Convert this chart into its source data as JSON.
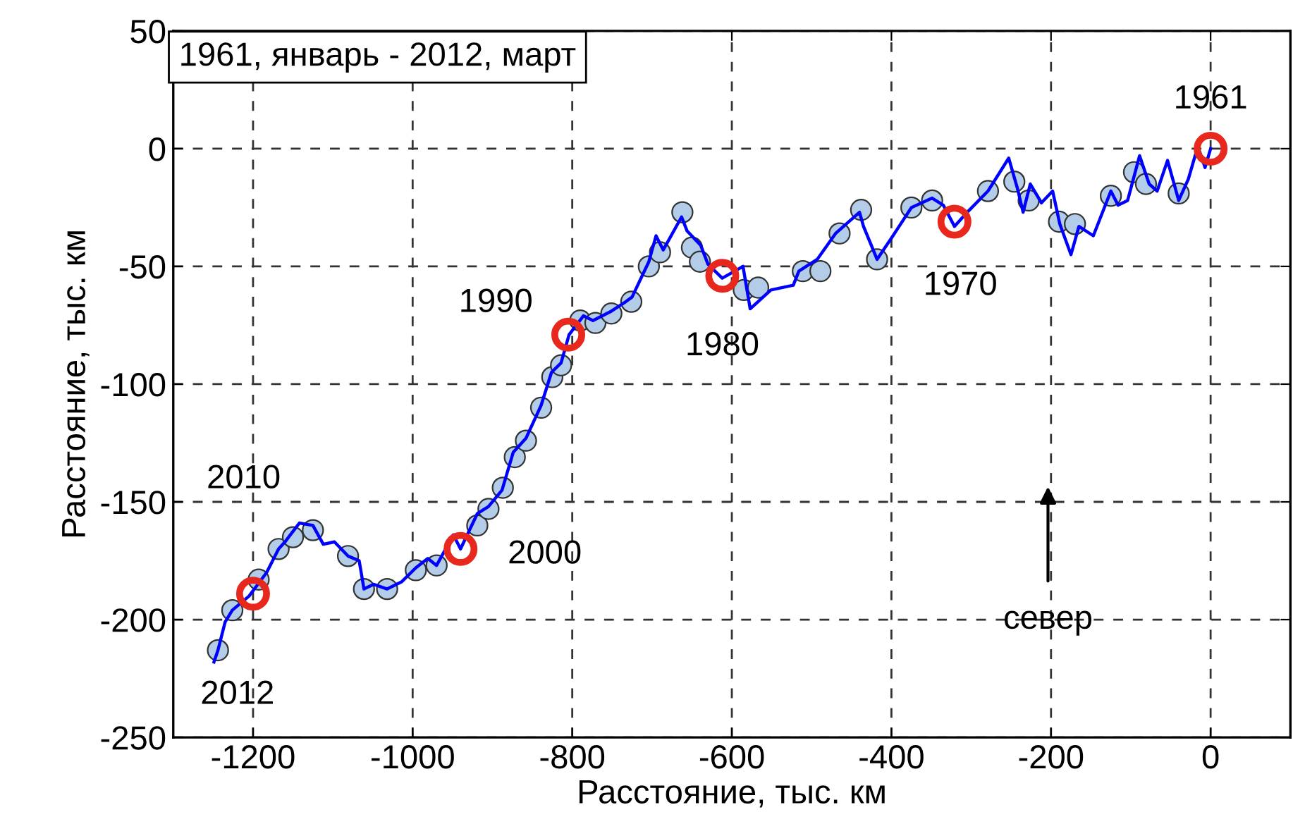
{
  "chart_data": {
    "type": "line",
    "xlabel": "Расстояние, тыс. км",
    "ylabel": "Расстояние, тыс. км",
    "xlim": [
      -1300,
      100
    ],
    "xticks": [
      -1200,
      -1000,
      -800,
      -600,
      -400,
      -200,
      0
    ],
    "ylim": [
      -250,
      50
    ],
    "yticks": [
      -250,
      -200,
      -150,
      -100,
      -50,
      0,
      50
    ],
    "grid": true,
    "legend": false,
    "series": [
      {
        "color": "#0000ff",
        "marker": "none",
        "x": [
          -1249,
          -1244,
          -1235,
          -1226,
          -1205,
          -1183,
          -1168,
          -1160,
          -1142,
          -1125,
          -1112,
          -1098,
          -1081,
          -1067,
          -1061,
          -1049,
          -1032,
          -1014,
          -996,
          -981,
          -970,
          -949,
          -940,
          -919,
          -905,
          -888,
          -874,
          -858,
          -839,
          -826,
          -814,
          -804,
          -786,
          -774,
          -751,
          -733,
          -725,
          -704,
          -695,
          -686,
          -663,
          -656,
          -639,
          -630,
          -612,
          -586,
          -581,
          -577,
          -551,
          -523,
          -516,
          -493,
          -470,
          -440,
          -435,
          -418,
          -400,
          -375,
          -349,
          -335,
          -321,
          -305,
          -279,
          -253,
          -242,
          -235,
          -226,
          -212,
          -198,
          -189,
          -175,
          -165,
          -147,
          -125,
          -116,
          -104,
          -89,
          -77,
          -67,
          -54,
          -40,
          -28,
          -16,
          -7,
          0
        ],
        "values": [
          -218,
          -213,
          -201,
          -196,
          -190,
          -180,
          -170,
          -167,
          -159,
          -160,
          -168,
          -167,
          -173,
          -175,
          -187,
          -185,
          -187,
          -184,
          -178,
          -174,
          -177,
          -164,
          -170,
          -155,
          -152,
          -145,
          -129,
          -123,
          -109,
          -95,
          -91,
          -79,
          -71,
          -73,
          -69,
          -65,
          -63,
          -48,
          -37,
          -43,
          -29,
          -35,
          -41,
          -49,
          -55,
          -50,
          -60,
          -68,
          -60,
          -58,
          -52,
          -47,
          -36,
          -27,
          -33,
          -47,
          -38,
          -25,
          -21,
          -24,
          -33,
          -27,
          -18,
          -4,
          -17,
          -27,
          -15,
          -23,
          -18,
          -32,
          -45,
          -33,
          -37,
          -18,
          -24,
          -22,
          -3,
          -15,
          -18,
          -5,
          -22,
          -13,
          1,
          -8,
          0
        ]
      },
      {
        "type": "scatter",
        "color": "#b3cde8",
        "marker": "circle",
        "x": [
          -1244,
          -1226,
          -1193,
          -1168,
          -1150,
          -1125,
          -1081,
          -1061,
          -1032,
          -996,
          -970,
          -919,
          -905,
          -887,
          -872,
          -858,
          -839,
          -825,
          -814,
          -790,
          -771,
          -751,
          -726,
          -704,
          -690,
          -662,
          -650,
          -640,
          -585,
          -567,
          -511,
          -489,
          -465,
          -438,
          -418,
          -375,
          -349,
          -279,
          -246,
          -228,
          -190,
          -170,
          -125,
          -96,
          -81,
          -40
        ],
        "values": [
          -213,
          -196,
          -183,
          -170,
          -165,
          -162,
          -173,
          -187,
          -187,
          -179,
          -177,
          -160,
          -153,
          -144,
          -131,
          -124,
          -110,
          -97,
          -92,
          -73,
          -74,
          -70,
          -65,
          -50,
          -44,
          -27,
          -42,
          -48,
          -60,
          -59,
          -52,
          -52,
          -36,
          -26,
          -47,
          -25,
          -22,
          -18,
          -14,
          -22,
          -31,
          -32,
          -20,
          -10,
          -15,
          -19
        ]
      },
      {
        "type": "scatter",
        "color": "#e8281c",
        "marker": "circle",
        "x": [
          -1200,
          -940,
          -805,
          -612,
          -321,
          0
        ],
        "values": [
          -189,
          -170,
          -79,
          -54,
          -31,
          0
        ]
      }
    ],
    "annotations": [
      "1961, январь - 2012, март",
      {
        "text": "2012",
        "x": -1249,
        "y": -218
      },
      "2010",
      {
        "text": "2000",
        "x": -940,
        "y": -170
      },
      {
        "text": "1990",
        "x": -805,
        "y": -79
      },
      {
        "text": "1980",
        "x": -612,
        "y": -55
      },
      {
        "text": "1970",
        "x": -321,
        "y": -31
      },
      {
        "text": "1961",
        "x": 0,
        "y": 0
      },
      "север"
    ]
  }
}
